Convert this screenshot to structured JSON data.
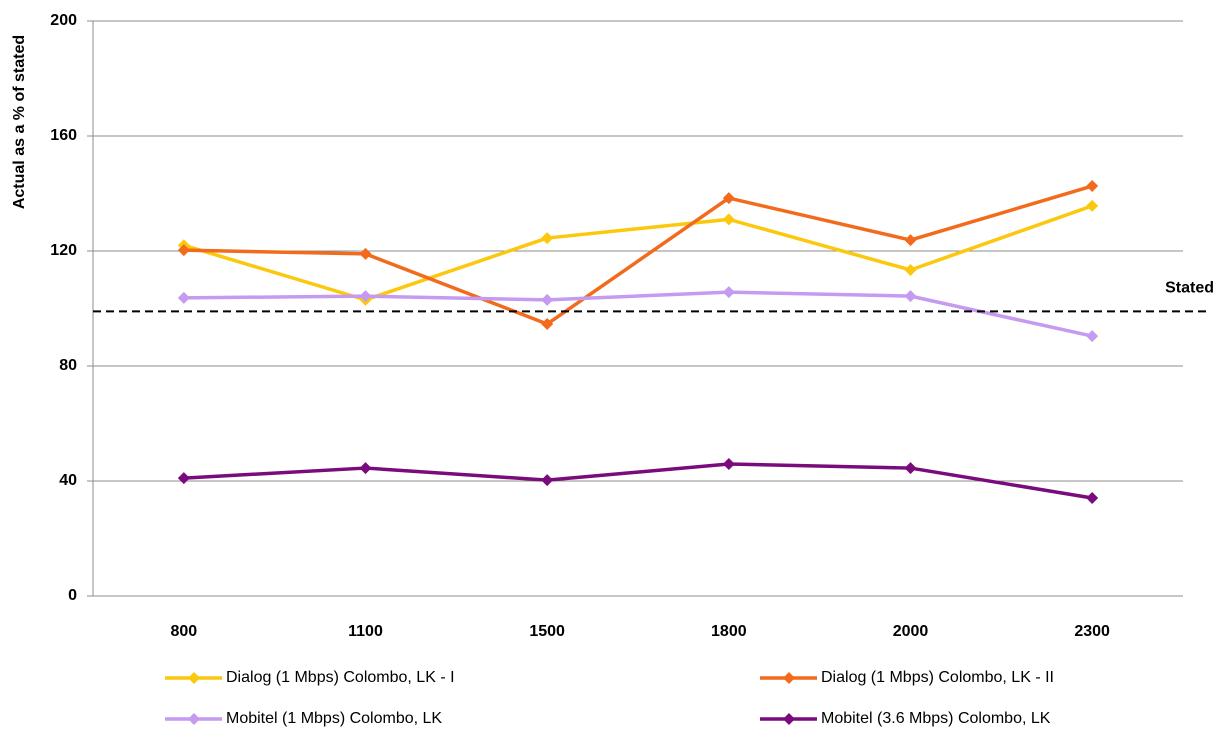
{
  "chart_data": {
    "type": "line",
    "y_label": "Actual as a % of stated",
    "categories": [
      "800",
      "1100",
      "1500",
      "1800",
      "2000",
      "2300"
    ],
    "series": [
      {
        "name": "Dialog (1 Mbps) Colombo, LK - I",
        "color": "#fcc80e",
        "values": [
          122,
          103,
          124.5,
          131,
          113.4,
          135.7
        ]
      },
      {
        "name": "Dialog (1 Mbps) Colombo, LK - II",
        "color": "#f26b1d",
        "values": [
          120.3,
          119,
          94.6,
          138.4,
          123.8,
          142.6
        ]
      },
      {
        "name": "Mobitel (1 Mbps) Colombo, LK",
        "color": "#c49bf0",
        "values": [
          103.7,
          104.3,
          103,
          105.7,
          104.3,
          90.4
        ]
      },
      {
        "name": "Mobitel (3.6 Mbps) Colombo, LK",
        "color": "#7a0b7c",
        "values": [
          41,
          44.5,
          40.3,
          45.9,
          44.5,
          34.1
        ]
      }
    ],
    "reference_line": {
      "value": 99,
      "label": "Stated"
    },
    "ylim": [
      0,
      200
    ],
    "yticks": [
      0,
      40,
      80,
      120,
      160,
      200
    ],
    "grid": true
  }
}
